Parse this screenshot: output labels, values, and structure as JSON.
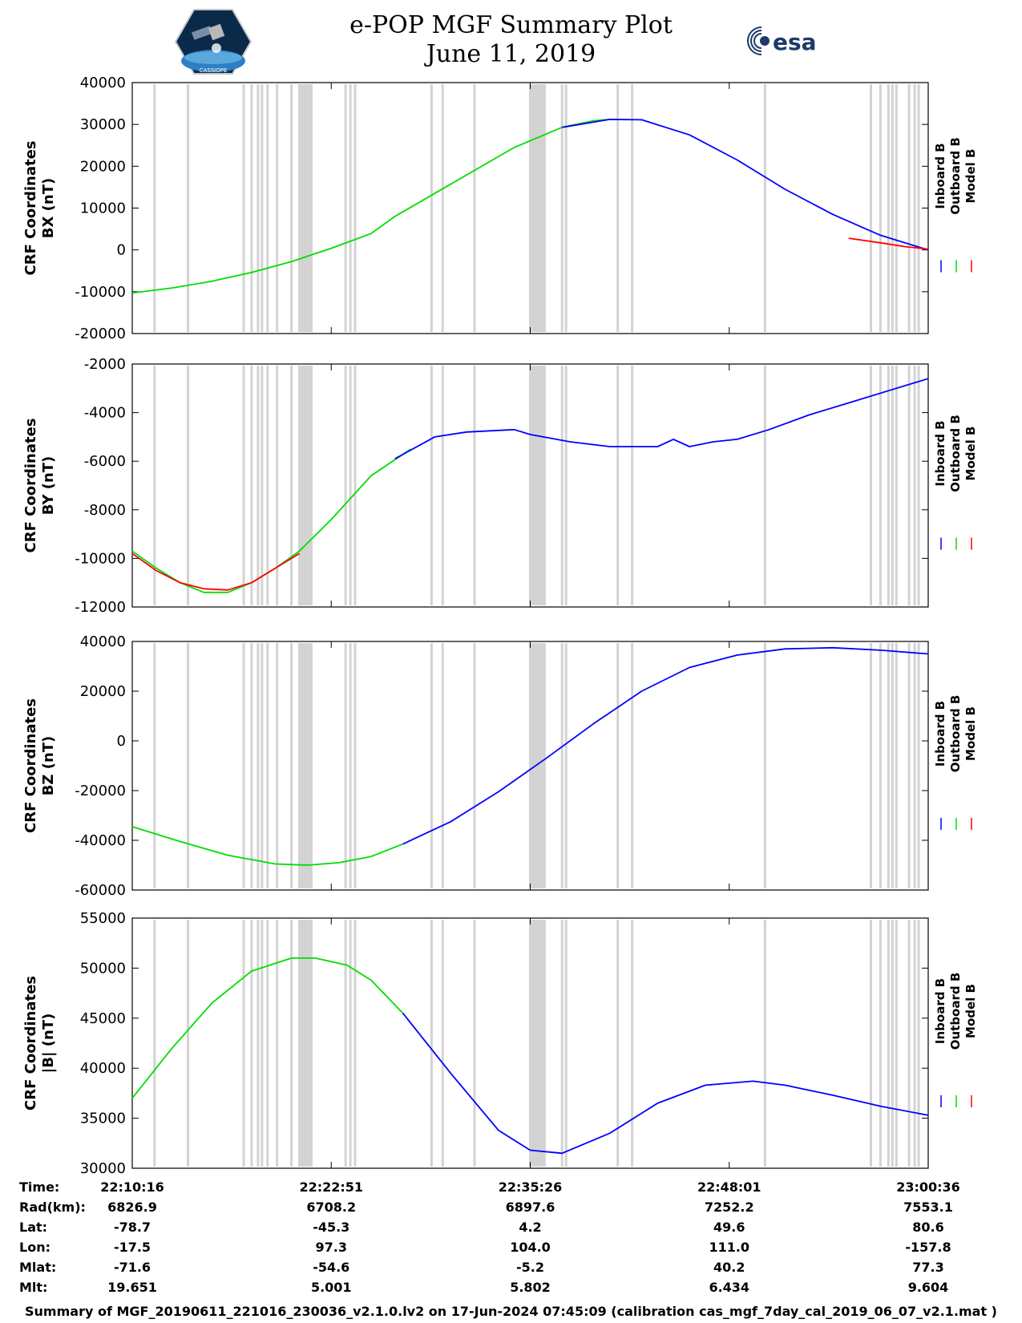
{
  "title": {
    "line1": "e-POP MGF Summary Plot",
    "line2": "June 11, 2019"
  },
  "footer": "Summary of MGF_20190611_221016_230036_v2.1.0.lv2 on 17-Jun-2024 07:45:09 (calibration cas_mgf_7day_cal_2019_06_07_v2.1.mat )",
  "logos": {
    "left_caption": "CASSIOPE",
    "right_text": "esa"
  },
  "colors": {
    "inboard": "#0000ff",
    "outboard": "#00dd00",
    "model": "#ff0000",
    "gaps": "#d3d3d3"
  },
  "chart_data": [
    {
      "type": "line",
      "ylabel": [
        "CRF Coordinates",
        "BX (nT)"
      ],
      "ylim": [
        -20000,
        40000
      ],
      "yticks": [
        -20000,
        -10000,
        0,
        10000,
        20000,
        30000,
        40000
      ],
      "legend": [
        "Inboard B",
        "Outboard B",
        "Model B"
      ],
      "series": [
        {
          "name": "Outboard B",
          "x": [
            0,
            0.05,
            0.1,
            0.15,
            0.2,
            0.25,
            0.3,
            0.33,
            0.38,
            0.43,
            0.48,
            0.54,
            0.58,
            0.6
          ],
          "values": [
            -10300,
            -9100,
            -7500,
            -5400,
            -2800,
            400,
            3900,
            8000,
            13500,
            19000,
            24500,
            29300,
            30900,
            31200
          ]
        },
        {
          "name": "Inboard B",
          "x": [
            0.54,
            0.6,
            0.64,
            0.7,
            0.76,
            0.82,
            0.88,
            0.94,
            1.0
          ],
          "values": [
            29300,
            31200,
            31100,
            27500,
            21500,
            14500,
            8500,
            3500,
            0
          ]
        },
        {
          "name": "Model B",
          "x": [
            0.9,
            0.94,
            0.97,
            1.0
          ],
          "values": [
            2800,
            1700,
            800,
            200
          ]
        }
      ]
    },
    {
      "type": "line",
      "ylabel": [
        "CRF Coordinates",
        "BY (nT)"
      ],
      "ylim": [
        -12000,
        -2000
      ],
      "yticks": [
        -12000,
        -10000,
        -8000,
        -6000,
        -4000,
        -2000
      ],
      "legend": [
        "Inboard B",
        "Outboard B",
        "Model B"
      ],
      "series": [
        {
          "name": "Outboard B",
          "x": [
            0,
            0.03,
            0.06,
            0.09,
            0.12,
            0.15,
            0.18,
            0.21,
            0.25,
            0.3,
            0.35
          ],
          "values": [
            -9700,
            -10400,
            -11000,
            -11400,
            -11400,
            -11000,
            -10400,
            -9700,
            -8400,
            -6600,
            -5500
          ]
        },
        {
          "name": "Model B",
          "x": [
            0,
            0.03,
            0.06,
            0.09,
            0.12,
            0.15,
            0.18,
            0.21
          ],
          "values": [
            -9800,
            -10500,
            -11000,
            -11250,
            -11300,
            -11000,
            -10400,
            -9800
          ]
        },
        {
          "name": "Inboard B",
          "x": [
            0.33,
            0.38,
            0.42,
            0.48,
            0.5,
            0.55,
            0.6,
            0.66,
            0.68,
            0.7,
            0.73,
            0.76,
            0.8,
            0.85,
            0.9,
            0.95,
            1.0
          ],
          "values": [
            -5900,
            -5000,
            -4800,
            -4700,
            -4900,
            -5200,
            -5400,
            -5400,
            -5100,
            -5400,
            -5200,
            -5100,
            -4700,
            -4100,
            -3600,
            -3100,
            -2600
          ]
        }
      ]
    },
    {
      "type": "line",
      "ylabel": [
        "CRF Coordinates",
        "BZ (nT)"
      ],
      "ylim": [
        -60000,
        40000
      ],
      "yticks": [
        -60000,
        -40000,
        -20000,
        0,
        20000,
        40000
      ],
      "legend": [
        "Inboard B",
        "Outboard B",
        "Model B"
      ],
      "series": [
        {
          "name": "Outboard B",
          "x": [
            0,
            0.06,
            0.12,
            0.18,
            0.22,
            0.26,
            0.3,
            0.34
          ],
          "values": [
            -34500,
            -40500,
            -46000,
            -49500,
            -50000,
            -49000,
            -46500,
            -41500
          ]
        },
        {
          "name": "Inboard B",
          "x": [
            0.34,
            0.4,
            0.46,
            0.52,
            0.58,
            0.64,
            0.7,
            0.76,
            0.82,
            0.88,
            0.94,
            1.0
          ],
          "values": [
            -41500,
            -32500,
            -20500,
            -7000,
            7000,
            20000,
            29500,
            34500,
            37000,
            37500,
            36500,
            35000
          ]
        }
      ]
    },
    {
      "type": "line",
      "ylabel": [
        "CRF Coordinates",
        "|B| (nT)"
      ],
      "ylim": [
        30000,
        55000
      ],
      "yticks": [
        30000,
        35000,
        40000,
        45000,
        50000,
        55000
      ],
      "legend": [
        "Inboard B",
        "Outboard B",
        "Model B"
      ],
      "series": [
        {
          "name": "Outboard B",
          "x": [
            0,
            0.05,
            0.1,
            0.15,
            0.2,
            0.23,
            0.27,
            0.3,
            0.34
          ],
          "values": [
            37000,
            42000,
            46500,
            49700,
            51000,
            51000,
            50300,
            48800,
            45500
          ]
        },
        {
          "name": "Inboard B",
          "x": [
            0.34,
            0.4,
            0.46,
            0.5,
            0.54,
            0.6,
            0.66,
            0.72,
            0.78,
            0.82,
            0.88,
            0.94,
            1.0
          ],
          "values": [
            45500,
            39500,
            33800,
            31800,
            31500,
            33500,
            36500,
            38300,
            38700,
            38300,
            37300,
            36200,
            35300
          ]
        }
      ]
    }
  ],
  "gap_lines": [
    0.028,
    0.07,
    0.14,
    0.15,
    0.158,
    0.163,
    0.17,
    0.182,
    0.2,
    0.21,
    0.213,
    0.216,
    0.219,
    0.222,
    0.225,
    0.268,
    0.274,
    0.28,
    0.376,
    0.39,
    0.43,
    0.5,
    0.502,
    0.504,
    0.506,
    0.508,
    0.51,
    0.512,
    0.514,
    0.516,
    0.518,
    0.54,
    0.545,
    0.61,
    0.628,
    0.795,
    0.928,
    0.94,
    0.95,
    0.955,
    0.96,
    0.976,
    0.983,
    0.988
  ],
  "time_axis": {
    "row_labels": [
      "Time:",
      "Rad(km):",
      "Lat:",
      "Lon:",
      "Mlat:",
      "Mlt:"
    ],
    "columns": [
      [
        "22:10:16",
        "6826.9",
        "-78.7",
        "-17.5",
        "-71.6",
        "19.651"
      ],
      [
        "22:22:51",
        "6708.2",
        "-45.3",
        "97.3",
        "-54.6",
        "5.001"
      ],
      [
        "22:35:26",
        "6897.6",
        "4.2",
        "104.0",
        "-5.2",
        "5.802"
      ],
      [
        "22:48:01",
        "7252.2",
        "49.6",
        "111.0",
        "40.2",
        "6.434"
      ],
      [
        "23:00:36",
        "7553.1",
        "80.6",
        "-157.8",
        "77.3",
        "9.604"
      ]
    ]
  }
}
